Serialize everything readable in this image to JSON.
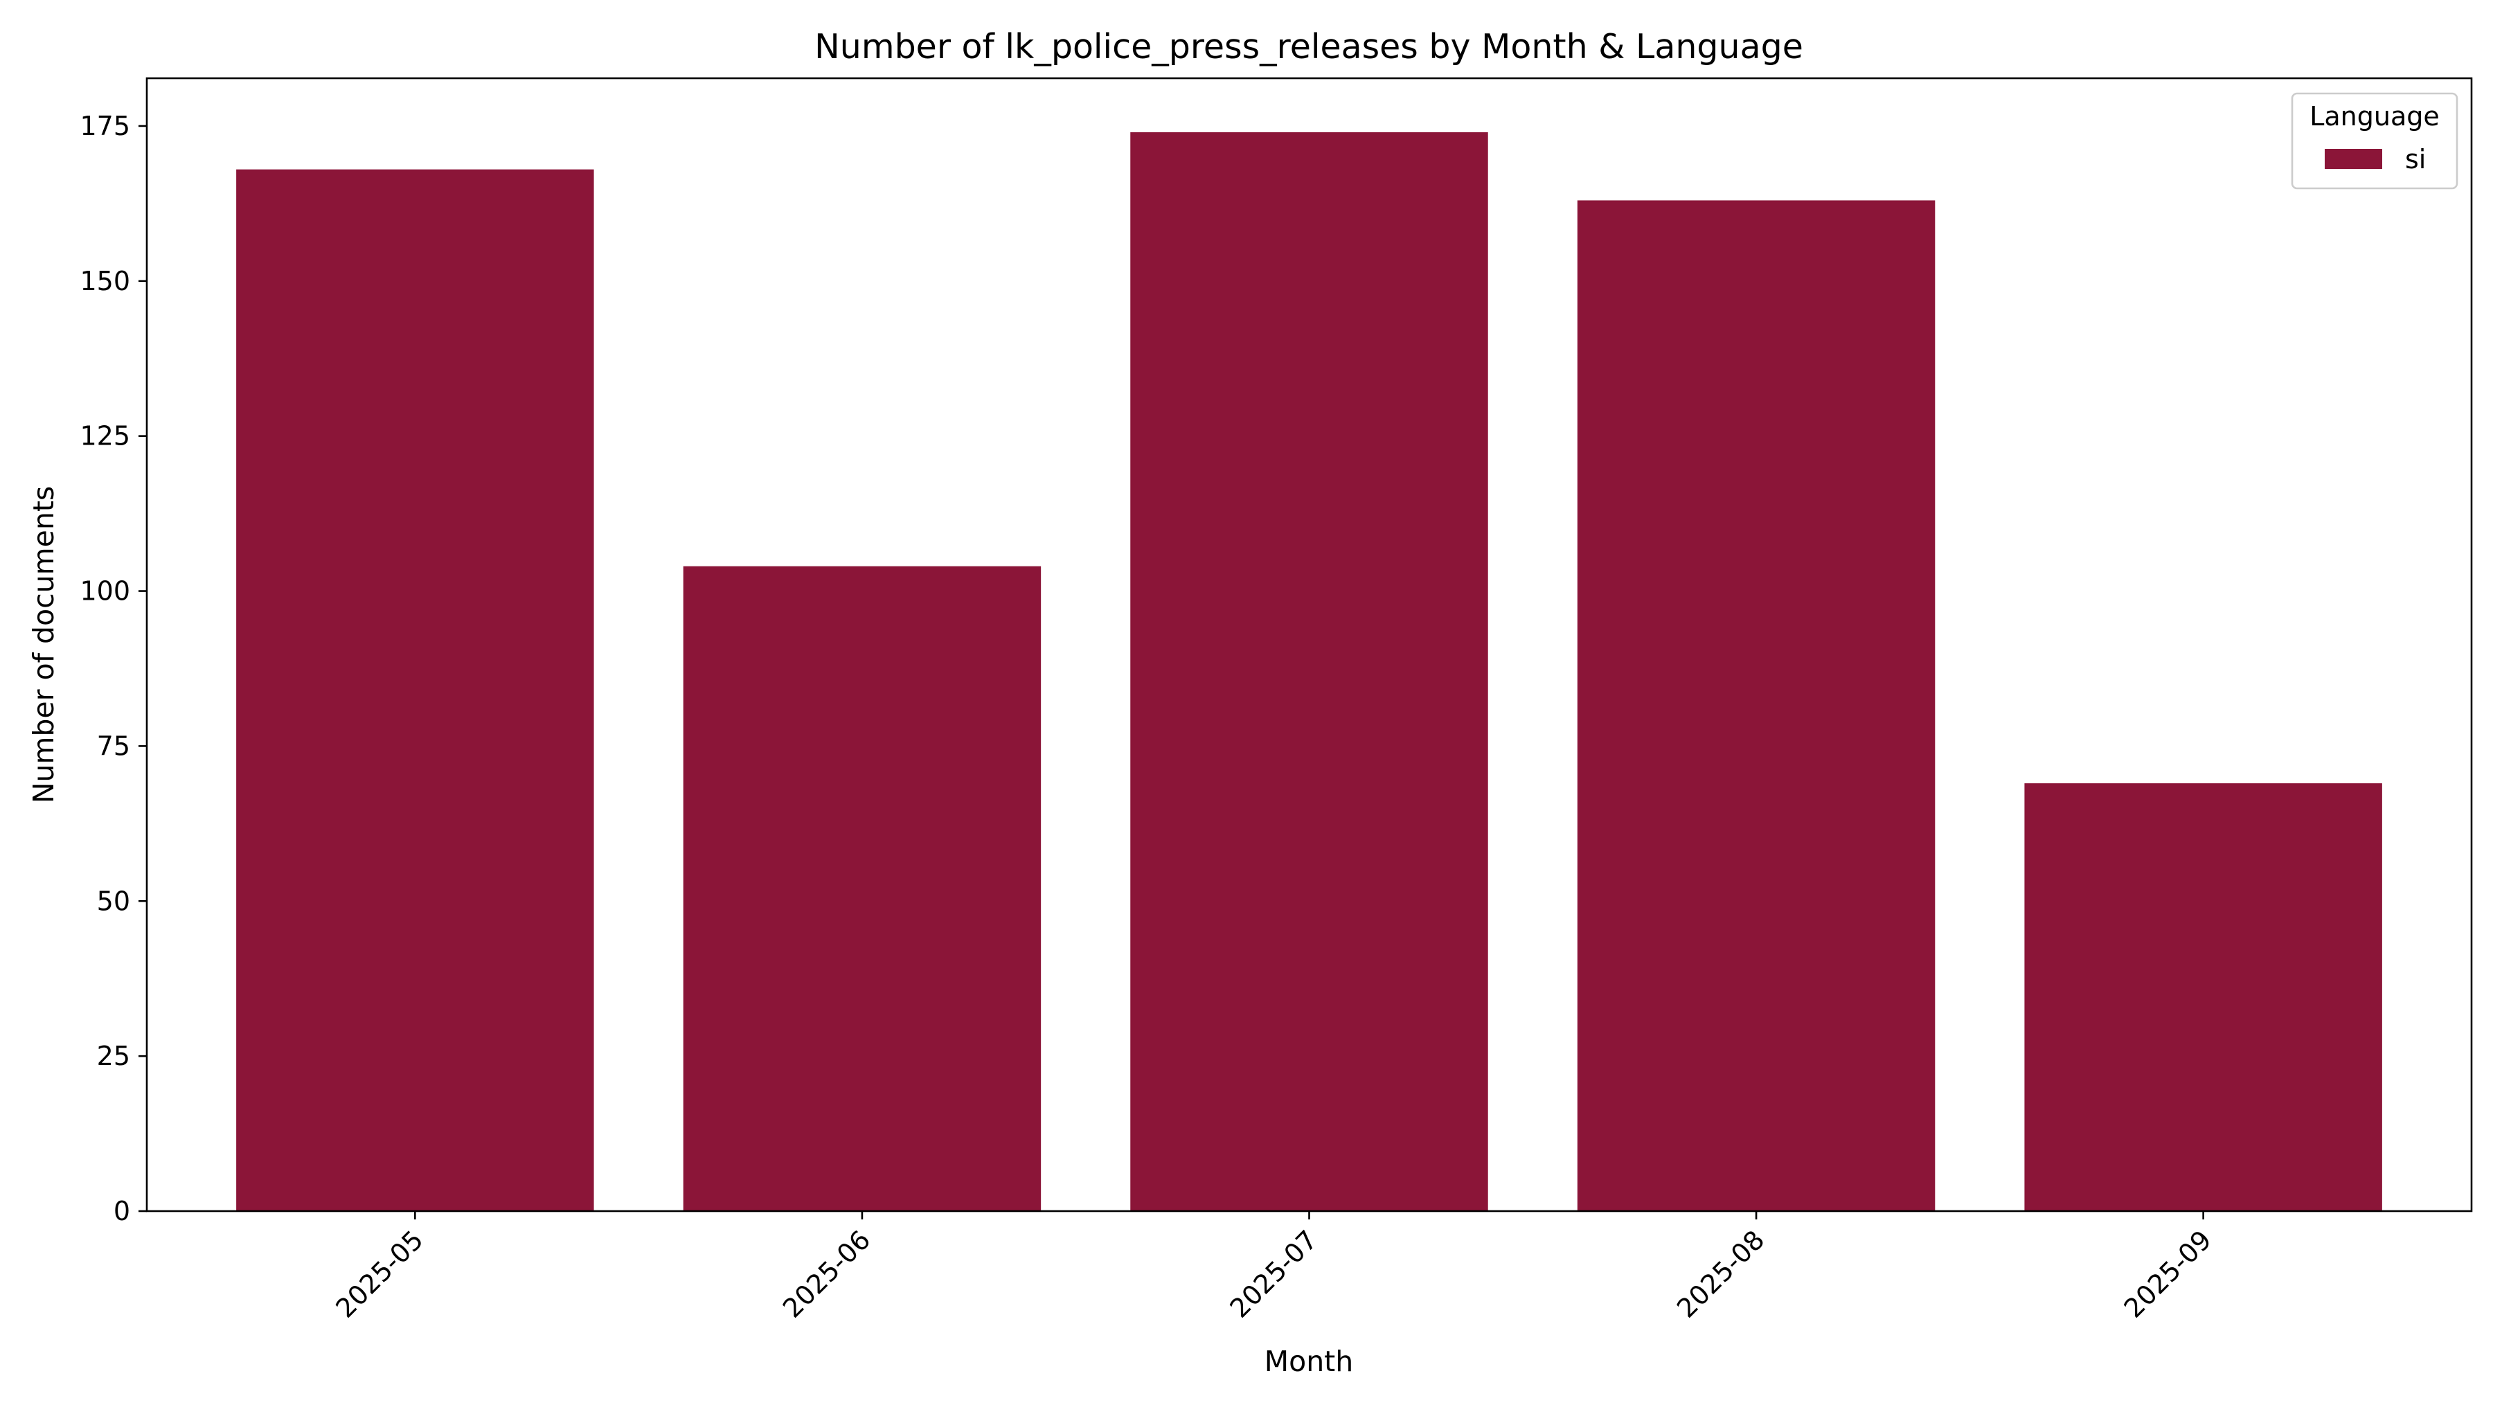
{
  "chart_data": {
    "type": "bar",
    "title": "Number of lk_police_press_releases by Month & Language",
    "xlabel": "Month",
    "ylabel": "Number of documents",
    "categories": [
      "2025-05",
      "2025-06",
      "2025-07",
      "2025-08",
      "2025-09"
    ],
    "series": [
      {
        "name": "si",
        "values": [
          168,
          104,
          174,
          163,
          69
        ],
        "color": "#8b1538"
      }
    ],
    "ylim": [
      0,
      182.7
    ],
    "yticks": [
      0,
      25,
      50,
      75,
      100,
      125,
      150,
      175
    ],
    "grid": false,
    "legend": {
      "title": "Language",
      "placement": "top-right"
    }
  }
}
